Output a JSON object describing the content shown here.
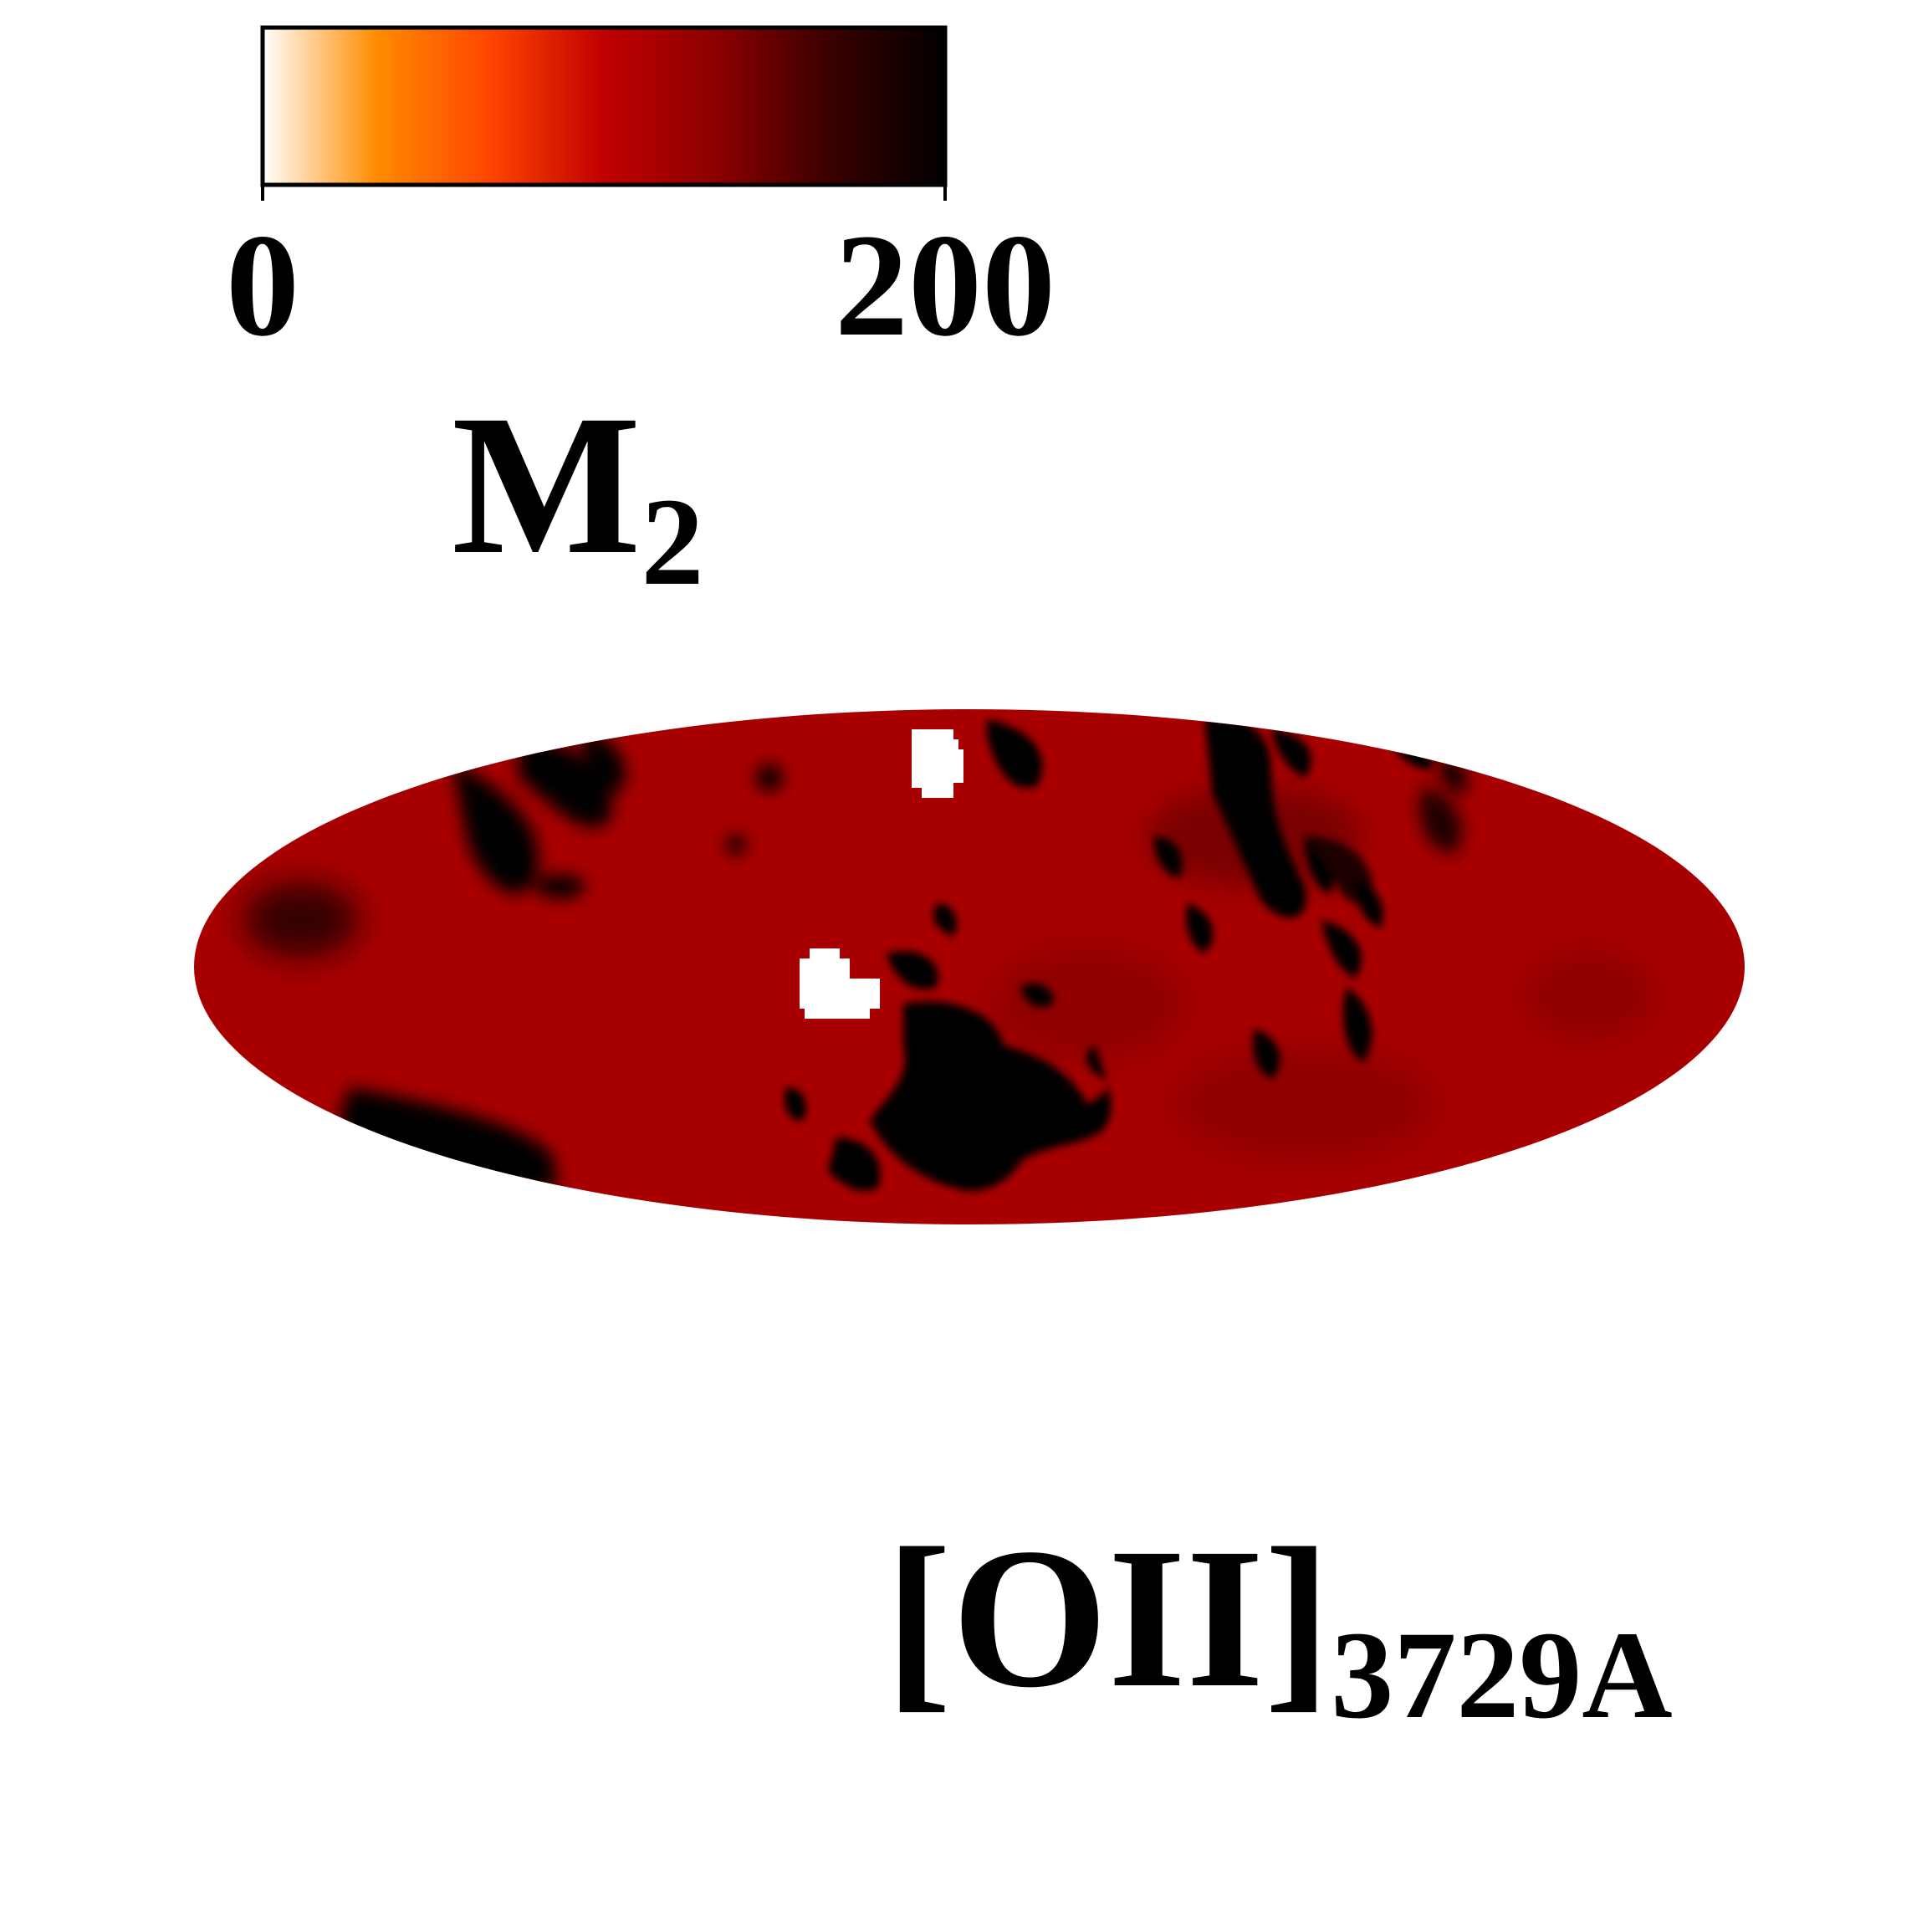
{
  "chart_data": {
    "type": "heatmap",
    "projection": "mollweide",
    "colormap": {
      "name": "gist_heat_r",
      "stops": [
        "#ffffff",
        "#ff8c00",
        "#ff4500",
        "#c00000",
        "#8b0000",
        "#3a0000",
        "#000000"
      ],
      "range": [
        0,
        200
      ],
      "tick_labels": [
        "0",
        "200"
      ]
    },
    "colorbar_label": {
      "main": "M",
      "sub": "2"
    },
    "line_label": {
      "main": "[OII]",
      "sub": "3729A"
    },
    "map_base_value": 150,
    "map_base_color": "#a80000",
    "masked_color": "#ffffff"
  }
}
